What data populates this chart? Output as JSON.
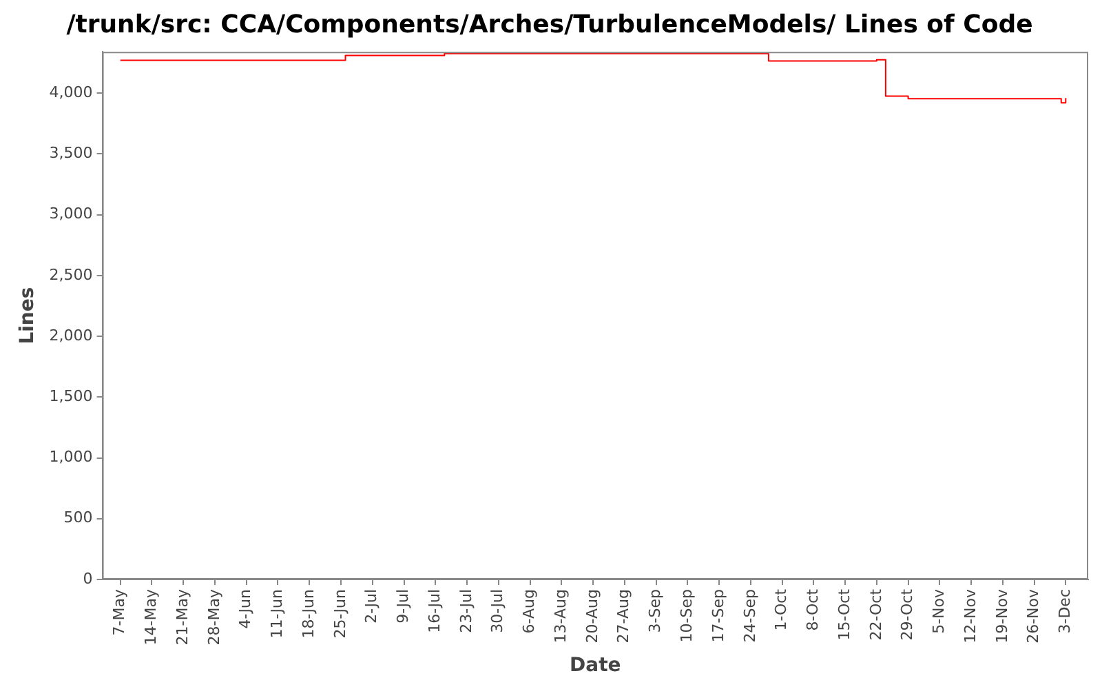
{
  "chart_data": {
    "type": "step",
    "title": "/trunk/src: CCA/Components/Arches/TurbulenceModels/ Lines of Code",
    "xlabel": "Date",
    "ylabel": "Lines",
    "x": [
      "--05-07",
      "--06-26",
      "--07-18",
      "--09-28",
      "--10-22",
      "--10-24",
      "--10-29",
      "--12-02",
      "--12-03"
    ],
    "series": [
      {
        "color": "#ff0000",
        "values": [
          4270,
          4310,
          4325,
          4265,
          4275,
          3975,
          3955,
          3920,
          3960
        ]
      }
    ],
    "xlim": [
      "--05-03",
      "--12-08"
    ],
    "xticks": [
      {
        "value": "--05-07",
        "label": "7-May"
      },
      {
        "value": "--05-14",
        "label": "14-May"
      },
      {
        "value": "--05-21",
        "label": "21-May"
      },
      {
        "value": "--05-28",
        "label": "28-May"
      },
      {
        "value": "--06-04",
        "label": "4-Jun"
      },
      {
        "value": "--06-11",
        "label": "11-Jun"
      },
      {
        "value": "--06-18",
        "label": "18-Jun"
      },
      {
        "value": "--06-25",
        "label": "25-Jun"
      },
      {
        "value": "--07-02",
        "label": "2-Jul"
      },
      {
        "value": "--07-09",
        "label": "9-Jul"
      },
      {
        "value": "--07-16",
        "label": "16-Jul"
      },
      {
        "value": "--07-23",
        "label": "23-Jul"
      },
      {
        "value": "--07-30",
        "label": "30-Jul"
      },
      {
        "value": "--08-06",
        "label": "6-Aug"
      },
      {
        "value": "--08-13",
        "label": "13-Aug"
      },
      {
        "value": "--08-20",
        "label": "20-Aug"
      },
      {
        "value": "--08-27",
        "label": "27-Aug"
      },
      {
        "value": "--09-03",
        "label": "3-Sep"
      },
      {
        "value": "--09-10",
        "label": "10-Sep"
      },
      {
        "value": "--09-17",
        "label": "17-Sep"
      },
      {
        "value": "--09-24",
        "label": "24-Sep"
      },
      {
        "value": "--10-01",
        "label": "1-Oct"
      },
      {
        "value": "--10-08",
        "label": "8-Oct"
      },
      {
        "value": "--10-15",
        "label": "15-Oct"
      },
      {
        "value": "--10-22",
        "label": "22-Oct"
      },
      {
        "value": "--10-29",
        "label": "29-Oct"
      },
      {
        "value": "--11-05",
        "label": "5-Nov"
      },
      {
        "value": "--11-12",
        "label": "12-Nov"
      },
      {
        "value": "--11-19",
        "label": "19-Nov"
      },
      {
        "value": "--11-26",
        "label": "26-Nov"
      },
      {
        "value": "--12-03",
        "label": "3-Dec"
      }
    ],
    "ylim": [
      0,
      4340
    ],
    "yticks": [
      0,
      500,
      {
        "value": 1000,
        "label": "1,000"
      },
      {
        "value": 1500,
        "label": "1,500"
      },
      {
        "value": 2000,
        "label": "2,000"
      },
      {
        "value": 2500,
        "label": "2,500"
      },
      {
        "value": 3000,
        "label": "3,000"
      },
      {
        "value": 3500,
        "label": "3,500"
      },
      {
        "value": 4000,
        "label": "4,000"
      }
    ],
    "grid": false,
    "legend": false,
    "marker": "none",
    "line_style": "solid"
  }
}
